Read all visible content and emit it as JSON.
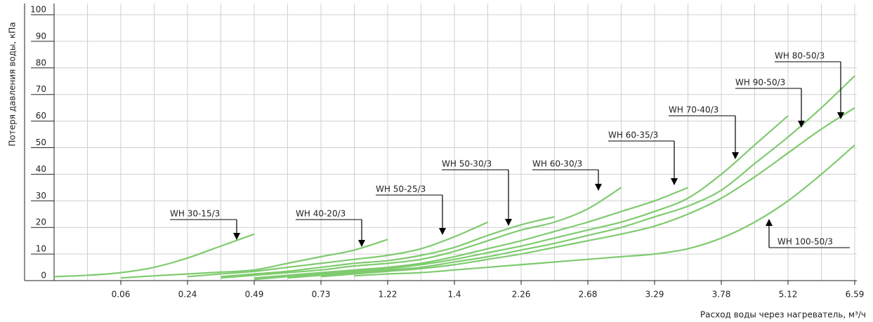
{
  "chart_data": {
    "type": "line",
    "y_label": "Потеря давления воды, кПа",
    "x_label": "Расход воды через нагреватель, м³/ч",
    "categories": [
      null,
      null,
      "0.06",
      null,
      "0.24",
      null,
      "0.49",
      null,
      "0.73",
      null,
      "1.22",
      null,
      "1.4",
      null,
      "2.26",
      null,
      "2.68",
      null,
      "3.29",
      null,
      "3.78",
      null,
      "5.12",
      null,
      "6.59"
    ],
    "ylim": [
      0,
      100
    ],
    "yticks": [
      0,
      10,
      20,
      30,
      40,
      50,
      60,
      70,
      80,
      90,
      100
    ],
    "grid": true,
    "series": [
      {
        "name": "WH 30-15/3",
        "color": "#7fcb6f",
        "values": [
          1.5,
          2,
          3,
          5,
          8.5,
          13,
          17.5,
          null,
          null,
          null,
          null,
          null,
          null,
          null,
          null,
          null,
          null,
          null,
          null,
          null,
          null,
          null,
          null,
          null,
          null
        ]
      },
      {
        "name": "WH 40-20/3",
        "color": "#7fcb6f",
        "values": [
          null,
          null,
          1,
          1.8,
          2.5,
          3.2,
          4,
          6.5,
          9,
          11.5,
          15.5,
          null,
          null,
          null,
          null,
          null,
          null,
          null,
          null,
          null,
          null,
          null,
          null,
          null,
          null
        ]
      },
      {
        "name": "WH 50-25/3",
        "color": "#7fcb6f",
        "values": [
          null,
          null,
          null,
          null,
          1.5,
          2.5,
          3.5,
          5,
          6.5,
          8,
          9.5,
          12,
          16.5,
          22,
          null,
          null,
          null,
          null,
          null,
          null,
          null,
          null,
          null,
          null,
          null
        ]
      },
      {
        "name": "WH 50-30/3",
        "color": "#7fcb6f",
        "values": [
          null,
          null,
          null,
          null,
          null,
          1.5,
          2.5,
          3.5,
          5,
          6.5,
          7.5,
          9.5,
          12.5,
          17,
          21,
          24,
          null,
          null,
          null,
          null,
          null,
          null,
          null,
          null,
          null
        ]
      },
      {
        "name": "WH 60-30/3",
        "color": "#7fcb6f",
        "values": [
          null,
          null,
          null,
          null,
          null,
          1,
          2,
          3,
          4,
          5.5,
          6.5,
          8,
          11,
          15,
          19,
          22,
          27,
          35,
          null,
          null,
          null,
          null,
          null,
          null,
          null
        ]
      },
      {
        "name": "WH 60-35/3",
        "color": "#7fcb6f",
        "values": [
          null,
          null,
          null,
          null,
          null,
          null,
          1,
          2,
          3,
          4,
          5,
          6.5,
          9,
          12,
          15,
          18.5,
          22,
          26,
          30,
          35,
          null,
          null,
          null,
          null,
          null
        ]
      },
      {
        "name": "WH 70-40/3",
        "color": "#7fcb6f",
        "values": [
          null,
          null,
          null,
          null,
          null,
          null,
          0.5,
          1.5,
          2.5,
          3.5,
          4.5,
          6,
          8,
          10.5,
          13,
          16,
          19,
          22,
          26,
          31,
          40,
          51,
          62,
          null,
          null
        ]
      },
      {
        "name": "WH 90-50/3",
        "color": "#7fcb6f",
        "values": [
          null,
          null,
          null,
          null,
          null,
          null,
          null,
          null,
          1.5,
          2.5,
          3.5,
          4.5,
          6,
          8,
          10,
          12.5,
          15,
          17.5,
          20.5,
          25,
          31,
          39,
          48,
          57,
          65
        ]
      },
      {
        "name": "WH 80-50/3",
        "color": "#7fcb6f",
        "values": [
          null,
          null,
          null,
          null,
          null,
          null,
          null,
          1,
          2,
          3,
          4,
          5,
          7,
          9,
          11.5,
          14,
          17,
          20,
          24,
          28,
          34,
          44,
          54,
          65,
          77
        ]
      },
      {
        "name": "WH 100-50/3",
        "color": "#7fcb6f",
        "values": [
          null,
          null,
          null,
          null,
          null,
          null,
          null,
          null,
          null,
          1.8,
          2.5,
          3,
          4,
          5,
          6,
          7,
          8,
          9,
          10,
          12,
          16,
          22,
          30,
          40,
          51
        ]
      }
    ]
  }
}
